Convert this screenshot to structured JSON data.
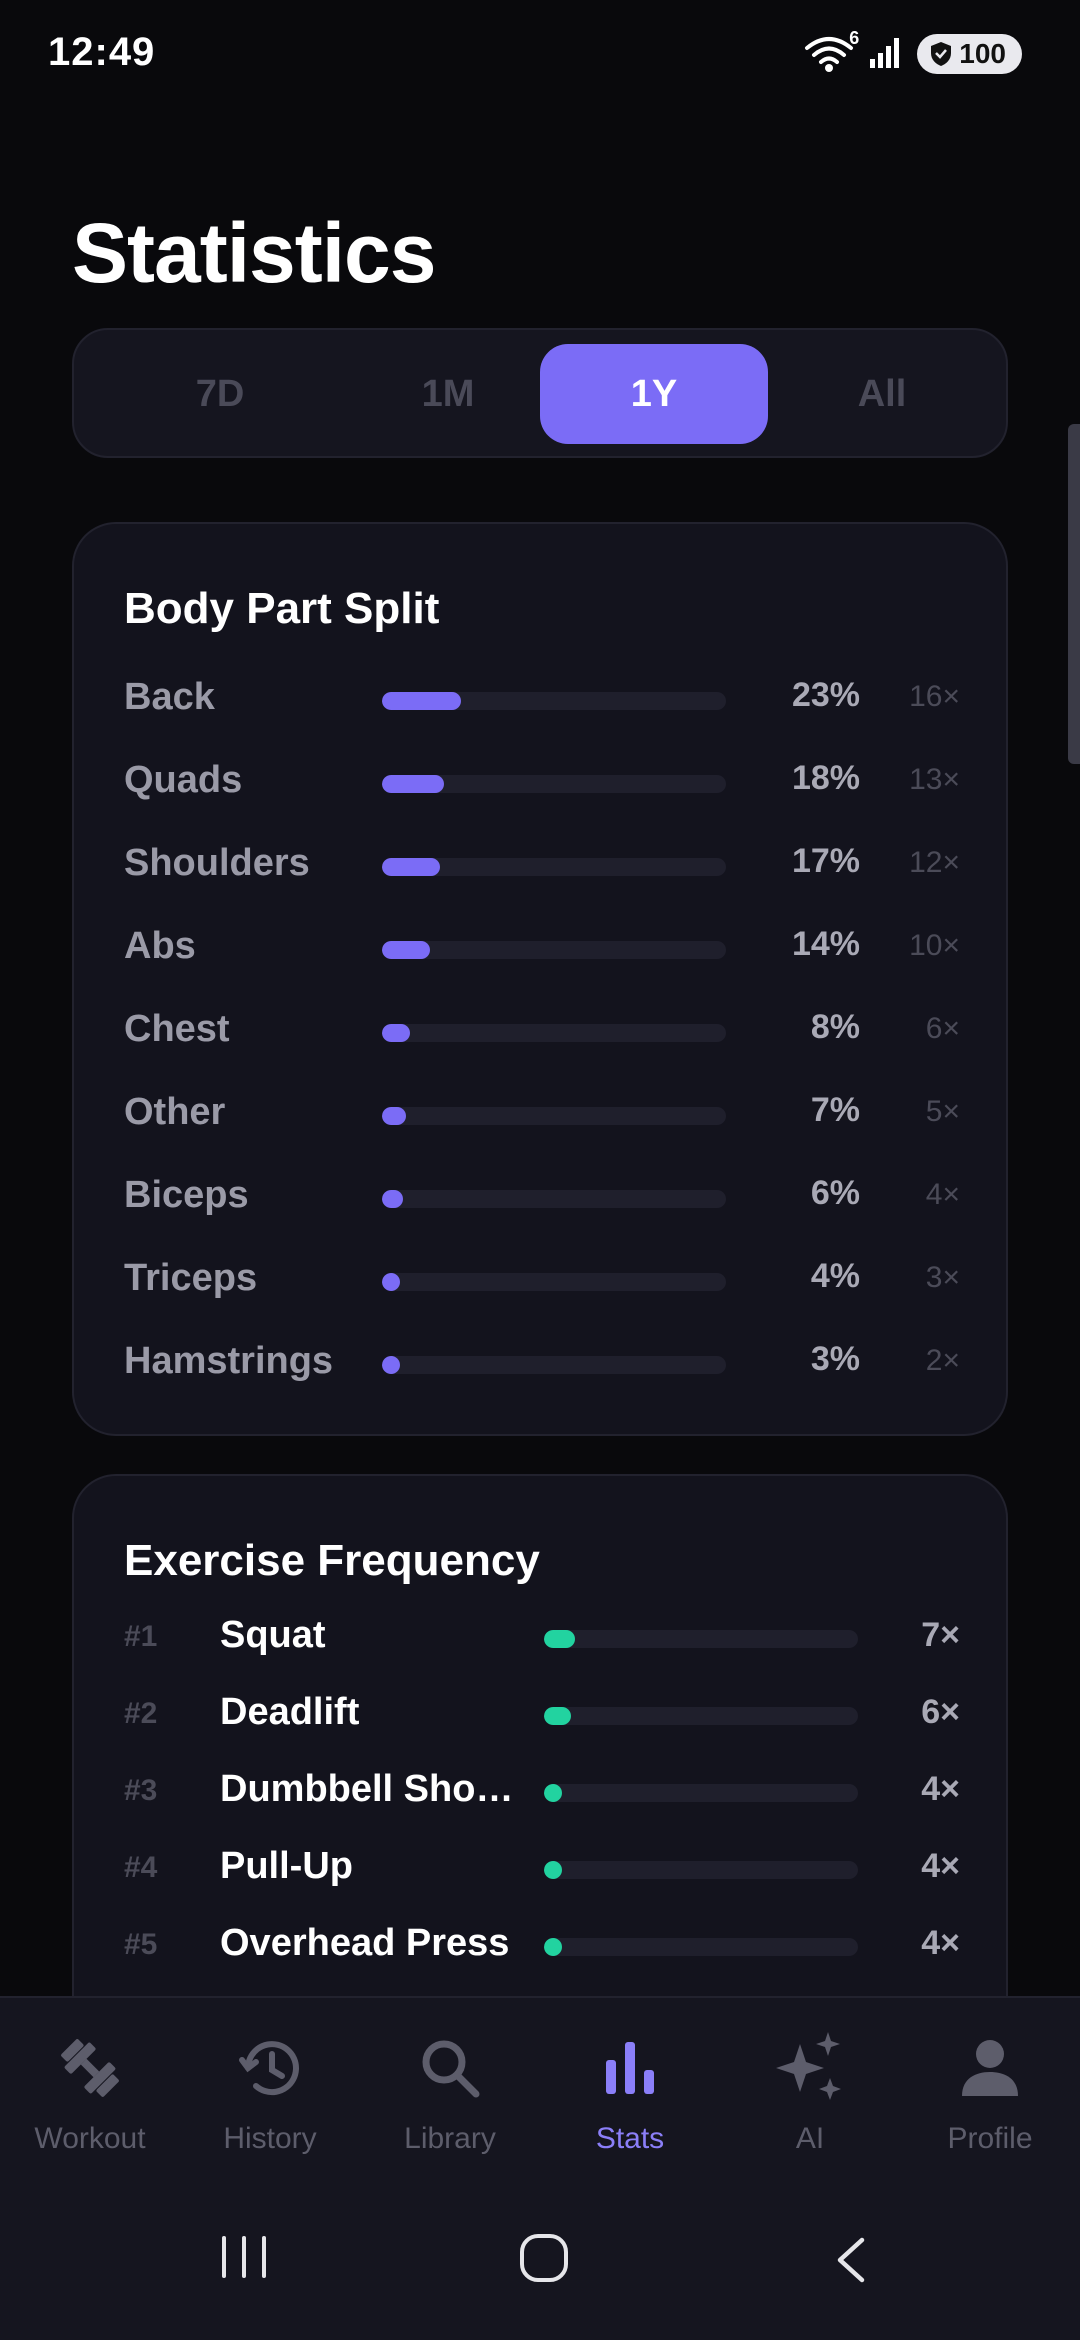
{
  "status": {
    "time": "12:49",
    "battery": "100",
    "wifi_badge": "6"
  },
  "title": "Statistics",
  "ranges": [
    {
      "label": "7D",
      "active": false
    },
    {
      "label": "1M",
      "active": false
    },
    {
      "label": "1Y",
      "active": true
    },
    {
      "label": "All",
      "active": false
    }
  ],
  "body_part_split": {
    "title": "Body Part Split",
    "items": [
      {
        "label": "Back",
        "percent": "23%",
        "count": "16×",
        "fill": 0.23
      },
      {
        "label": "Quads",
        "percent": "18%",
        "count": "13×",
        "fill": 0.18
      },
      {
        "label": "Shoulders",
        "percent": "17%",
        "count": "12×",
        "fill": 0.17
      },
      {
        "label": "Abs",
        "percent": "14%",
        "count": "10×",
        "fill": 0.14
      },
      {
        "label": "Chest",
        "percent": "8%",
        "count": "6×",
        "fill": 0.08
      },
      {
        "label": "Other",
        "percent": "7%",
        "count": "5×",
        "fill": 0.07
      },
      {
        "label": "Biceps",
        "percent": "6%",
        "count": "4×",
        "fill": 0.06
      },
      {
        "label": "Triceps",
        "percent": "4%",
        "count": "3×",
        "fill": 0.04
      },
      {
        "label": "Hamstrings",
        "percent": "3%",
        "count": "2×",
        "fill": 0.03
      }
    ]
  },
  "exercise_frequency": {
    "title": "Exercise Frequency",
    "items": [
      {
        "rank": "#1",
        "name": "Squat",
        "count": "7×",
        "fill": 0.1
      },
      {
        "rank": "#2",
        "name": "Deadlift",
        "count": "6×",
        "fill": 0.085
      },
      {
        "rank": "#3",
        "name": "Dumbbell Shou…",
        "count": "4×",
        "fill": 0.055
      },
      {
        "rank": "#4",
        "name": "Pull-Up",
        "count": "4×",
        "fill": 0.055
      },
      {
        "rank": "#5",
        "name": "Overhead Press",
        "count": "4×",
        "fill": 0.055
      }
    ]
  },
  "nav": {
    "items": [
      {
        "label": "Workout",
        "icon": "dumbbell-icon",
        "active": false
      },
      {
        "label": "History",
        "icon": "history-icon",
        "active": false
      },
      {
        "label": "Library",
        "icon": "search-icon",
        "active": false
      },
      {
        "label": "Stats",
        "icon": "bar-chart-icon",
        "active": true
      },
      {
        "label": "AI",
        "icon": "sparkles-icon",
        "active": false
      },
      {
        "label": "Profile",
        "icon": "person-icon",
        "active": false
      }
    ]
  },
  "colors": {
    "accent": "#7b6cf6",
    "accent_green": "#22d3a0",
    "background": "#09090c",
    "card": "#13131d"
  }
}
